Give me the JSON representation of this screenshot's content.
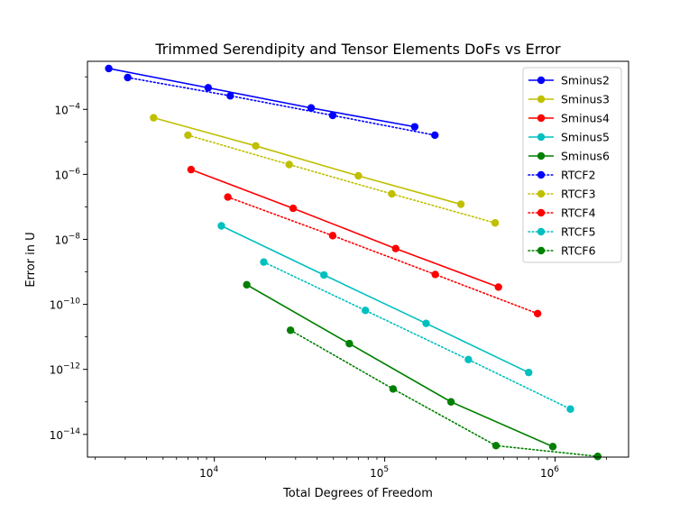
{
  "chart_data": {
    "type": "line",
    "title": "Trimmed Serendipity and Tensor Elements DoFs vs Error",
    "xlabel": "Total Degrees of Freedom",
    "ylabel": "Error in U",
    "x_scale": "log",
    "y_scale": "log",
    "xlim": [
      1800,
      2700000
    ],
    "ylim": [
      2e-15,
      0.003
    ],
    "x_ticks": [
      {
        "value": 10000,
        "base": "10",
        "exp": "4"
      },
      {
        "value": 100000,
        "base": "10",
        "exp": "5"
      },
      {
        "value": 1000000,
        "base": "10",
        "exp": "6"
      }
    ],
    "y_ticks": [
      {
        "value": 0.0001,
        "base": "10",
        "exp": "−4"
      },
      {
        "value": 1e-06,
        "base": "10",
        "exp": "−6"
      },
      {
        "value": 1e-08,
        "base": "10",
        "exp": "−8"
      },
      {
        "value": 1e-10,
        "base": "10",
        "exp": "−10"
      },
      {
        "value": 1e-12,
        "base": "10",
        "exp": "−12"
      },
      {
        "value": 1e-14,
        "base": "10",
        "exp": "−14"
      }
    ],
    "grid": false,
    "legend_position": "top-right",
    "series": [
      {
        "name": "Sminus2",
        "color": "#0000ff",
        "style": "solid",
        "x": [
          2400,
          9200,
          37000,
          150000
        ],
        "y": [
          0.0018,
          0.00046,
          0.00011,
          2.9e-05
        ]
      },
      {
        "name": "Sminus3",
        "color": "#bfbf00",
        "style": "solid",
        "x": [
          4400,
          17500,
          70000,
          280000
        ],
        "y": [
          5.5e-05,
          7.5e-06,
          9e-07,
          1.2e-07
        ]
      },
      {
        "name": "Sminus4",
        "color": "#ff0000",
        "style": "solid",
        "x": [
          7300,
          29000,
          116000,
          465000
        ],
        "y": [
          1.4e-06,
          9e-08,
          5.2e-09,
          3.4e-10
        ]
      },
      {
        "name": "Sminus5",
        "color": "#00bfbf",
        "style": "solid",
        "x": [
          11000,
          44000,
          175000,
          700000
        ],
        "y": [
          2.6e-08,
          8e-10,
          2.6e-11,
          8e-13
        ]
      },
      {
        "name": "Sminus6",
        "color": "#008000",
        "style": "solid",
        "x": [
          15500,
          62000,
          245000,
          970000
        ],
        "y": [
          4e-10,
          6.2e-12,
          1e-13,
          4.2e-15
        ]
      },
      {
        "name": "RTCF2",
        "color": "#0000ff",
        "style": "dotted",
        "x": [
          3100,
          12400,
          49500,
          197000
        ],
        "y": [
          0.00095,
          0.00026,
          6.5e-05,
          1.6e-05
        ]
      },
      {
        "name": "RTCF3",
        "color": "#bfbf00",
        "style": "dotted",
        "x": [
          7000,
          27500,
          110000,
          445000
        ],
        "y": [
          1.6e-05,
          2e-06,
          2.5e-07,
          3.2e-08
        ]
      },
      {
        "name": "RTCF4",
        "color": "#ff0000",
        "style": "dotted",
        "x": [
          12000,
          49500,
          198000,
          790000
        ],
        "y": [
          2e-07,
          1.3e-08,
          8.3e-10,
          5.2e-11
        ]
      },
      {
        "name": "RTCF5",
        "color": "#00bfbf",
        "style": "dotted",
        "x": [
          19500,
          77000,
          310000,
          1230000
        ],
        "y": [
          2e-09,
          6.5e-11,
          2e-12,
          6e-14
        ]
      },
      {
        "name": "RTCF6",
        "color": "#008000",
        "style": "dotted",
        "x": [
          28000,
          112000,
          450000,
          1780000
        ],
        "y": [
          1.6e-11,
          2.5e-13,
          4.5e-15,
          2.1e-15
        ]
      }
    ]
  }
}
